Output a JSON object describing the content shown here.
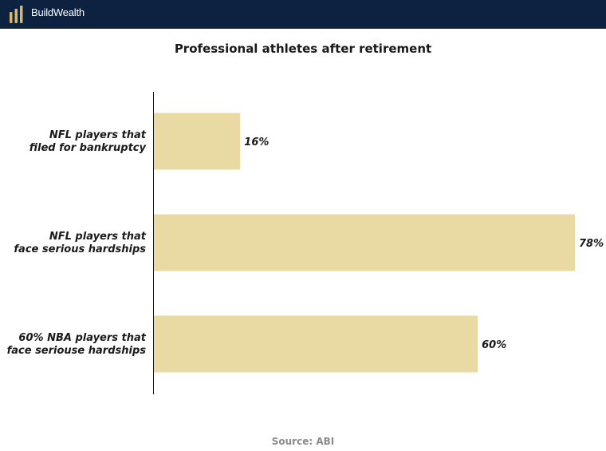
{
  "header": {
    "brand": "BuildWealth",
    "logo_icon": "bar-logo-icon",
    "background_color": "#0d2240",
    "logo_color": "#d9b66a"
  },
  "chart_data": {
    "type": "bar",
    "orientation": "horizontal",
    "title": "Professional athletes after retirement",
    "categories": [
      [
        "NFL players that",
        "filed for bankruptcy"
      ],
      [
        "NFL players that",
        "face serious hardships"
      ],
      [
        "60% NBA players that",
        "face seriouse hardships"
      ]
    ],
    "values": [
      16,
      78,
      60
    ],
    "value_labels": [
      "16%",
      "78%",
      "60%"
    ],
    "xlim": [
      0,
      78
    ],
    "grid": false,
    "bar_color": "#e9d9a2",
    "source": "Source: ABI"
  }
}
